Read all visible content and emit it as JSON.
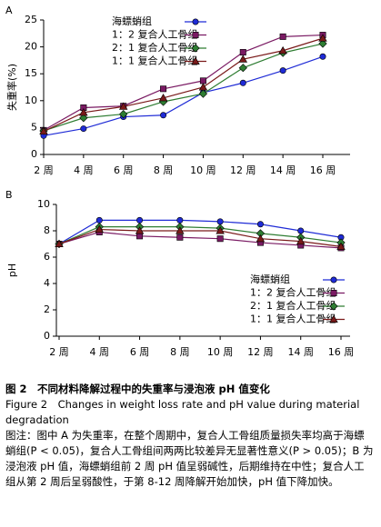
{
  "chart_data": [
    {
      "type": "line",
      "panel": "A",
      "ylabel": "失重率(%)",
      "categories": [
        "2 周",
        "4 周",
        "6 周",
        "8 周",
        "10 周",
        "12 周",
        "14 周",
        "16 周"
      ],
      "ylim": [
        0,
        25
      ],
      "yticks": [
        0,
        5,
        10,
        15,
        20,
        25
      ],
      "legend": "upper left",
      "series": [
        {
          "name": "海螵蛸组",
          "color": "#1f2bd6",
          "marker": "circle",
          "values": [
            3.5,
            4.8,
            7.0,
            7.3,
            11.5,
            13.3,
            15.6,
            18.2
          ]
        },
        {
          "name": "1：2 复合人工骨组",
          "color": "#7a1a63",
          "marker": "square",
          "values": [
            4.5,
            8.7,
            9.0,
            12.2,
            13.7,
            19.0,
            21.9,
            22.2
          ]
        },
        {
          "name": "2：1 复合人工骨组",
          "color": "#2e7d32",
          "marker": "diamond",
          "values": [
            4.4,
            6.8,
            7.5,
            9.8,
            11.3,
            16.1,
            18.9,
            20.6
          ]
        },
        {
          "name": "1：1 复合人工骨组",
          "color": "#7a1a1a",
          "marker": "triangle",
          "values": [
            4.3,
            7.8,
            8.9,
            10.5,
            12.5,
            17.7,
            19.3,
            21.6
          ]
        }
      ]
    },
    {
      "type": "line",
      "panel": "B",
      "ylabel": "pH",
      "categories": [
        "2 周",
        "4 周",
        "6 周",
        "8 周",
        "10 周",
        "12 周",
        "14 周",
        "16 周"
      ],
      "ylim": [
        0,
        10
      ],
      "yticks": [
        0,
        2,
        4,
        6,
        8,
        10
      ],
      "legend": "lower right",
      "series": [
        {
          "name": "海螵蛸组",
          "color": "#1f2bd6",
          "marker": "circle",
          "values": [
            7.0,
            8.8,
            8.8,
            8.8,
            8.7,
            8.5,
            8.0,
            7.5
          ]
        },
        {
          "name": "1：2 复合人工骨组",
          "color": "#7a1a63",
          "marker": "square",
          "values": [
            7.0,
            7.9,
            7.6,
            7.5,
            7.4,
            7.1,
            6.9,
            6.7
          ]
        },
        {
          "name": "2：1 复合人工骨组",
          "color": "#2e7d32",
          "marker": "diamond",
          "values": [
            7.0,
            8.3,
            8.3,
            8.3,
            8.2,
            7.8,
            7.5,
            7.1
          ]
        },
        {
          "name": "1：1 复合人工骨组",
          "color": "#7a1a1a",
          "marker": "triangle",
          "values": [
            7.0,
            8.1,
            8.0,
            8.0,
            8.0,
            7.4,
            7.2,
            6.8
          ]
        }
      ]
    }
  ],
  "caption": {
    "figure_cn": "图 2　不同材料降解过程中的失重率与浸泡液 pH 值变化",
    "figure_en": "Figure 2　Changes in weight loss rate and pH value during material degradation",
    "note": "图注：图中 A 为失重率，在整个周期中，复合人工骨组质量损失率均高于海螵蛸组(P < 0.05)，复合人工骨组间两两比较差异无显著性意义(P > 0.05)；B 为浸泡液 pH 值，海螵蛸组前 2 周 pH 值呈弱碱性，后期维持在中性；复合人工组从第 2 周后呈弱酸性，于第 8-12 周降解开始加快，pH 值下降加快。"
  }
}
